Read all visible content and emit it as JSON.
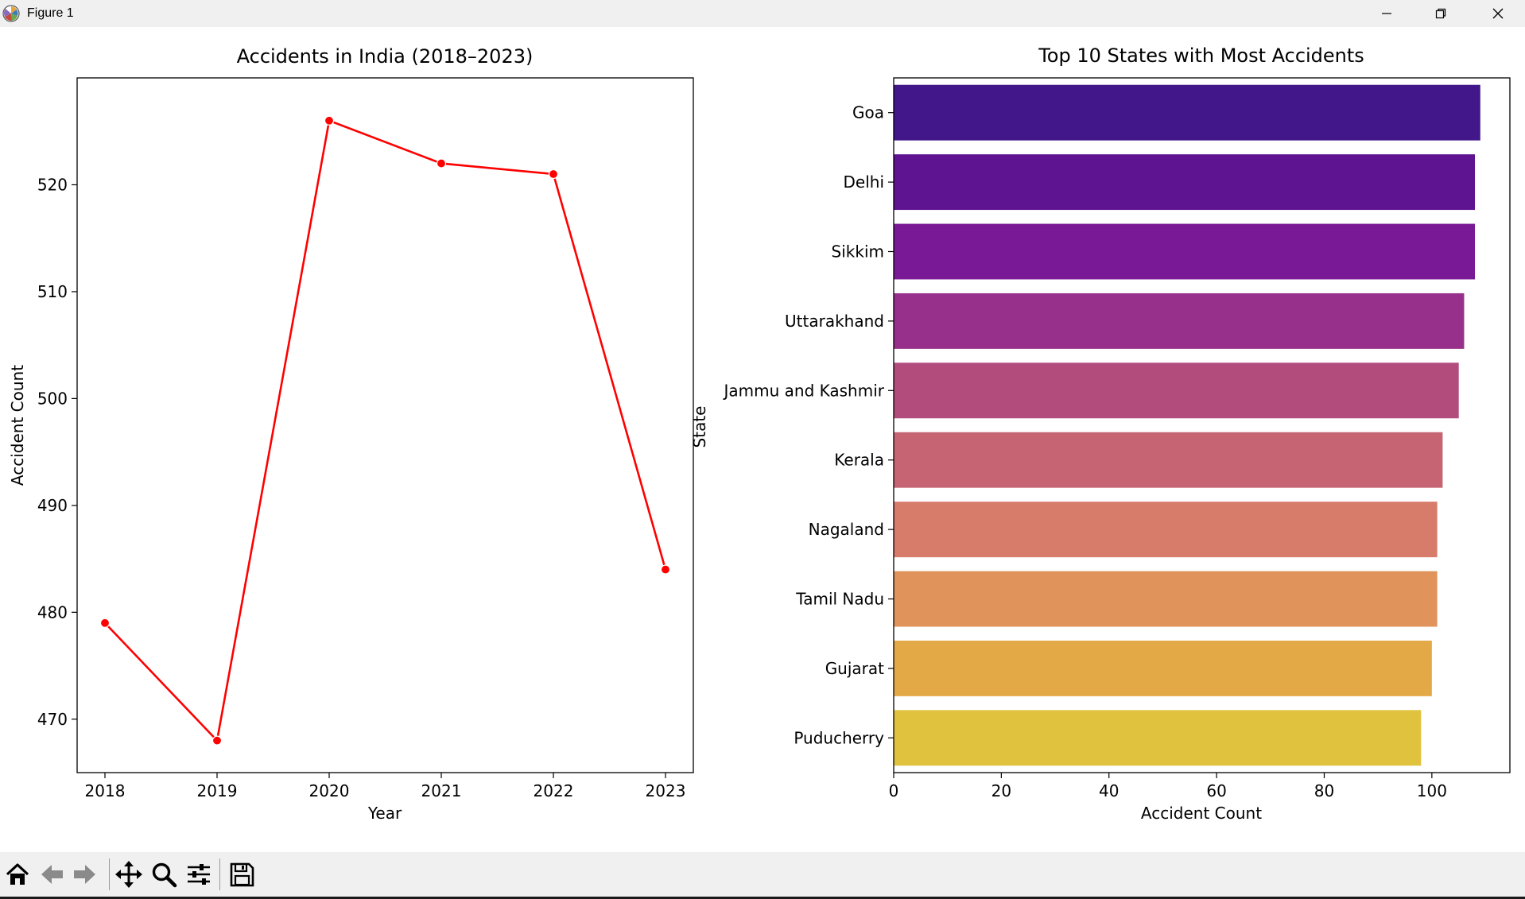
{
  "window": {
    "title": "Figure 1",
    "minimize_icon": "minimize-icon",
    "restore_icon": "restore-icon",
    "close_icon": "close-icon"
  },
  "toolbar": {
    "buttons": [
      "home-icon",
      "back-arrow-icon",
      "forward-arrow-icon",
      "pan-icon",
      "zoom-icon",
      "configure-subplots-icon",
      "save-icon"
    ]
  },
  "chart_data": [
    {
      "type": "line",
      "title": "Accidents in India (2018–2023)",
      "xlabel": "Year",
      "ylabel": "Accident Count",
      "x": [
        "2018",
        "2019",
        "2020",
        "2021",
        "2022",
        "2023"
      ],
      "values": [
        479,
        468,
        526,
        522,
        521,
        484
      ],
      "ylim": [
        465,
        530
      ],
      "yticks": [
        470,
        480,
        490,
        500,
        510,
        520
      ],
      "color": "#ff0000",
      "marker": "circle",
      "grid": false
    },
    {
      "type": "bar",
      "orientation": "horizontal",
      "title": "Top 10 States with Most Accidents",
      "xlabel": "Accident Count",
      "ylabel": "State",
      "categories": [
        "Goa",
        "Delhi",
        "Sikkim",
        "Uttarakhand",
        "Jammu and Kashmir",
        "Kerala",
        "Nagaland",
        "Tamil Nadu",
        "Gujarat",
        "Puducherry"
      ],
      "values": [
        109,
        108,
        108,
        106,
        105,
        102,
        101,
        101,
        100,
        98
      ],
      "xlim": [
        0,
        114.5
      ],
      "xticks": [
        0,
        20,
        40,
        60,
        80,
        100
      ],
      "colors": [
        "#41178a",
        "#5e1391",
        "#7a1995",
        "#97308a",
        "#b14c7d",
        "#c66473",
        "#d77b6a",
        "#e0935b",
        "#e4a947",
        "#e1c23f"
      ],
      "grid": false
    }
  ]
}
